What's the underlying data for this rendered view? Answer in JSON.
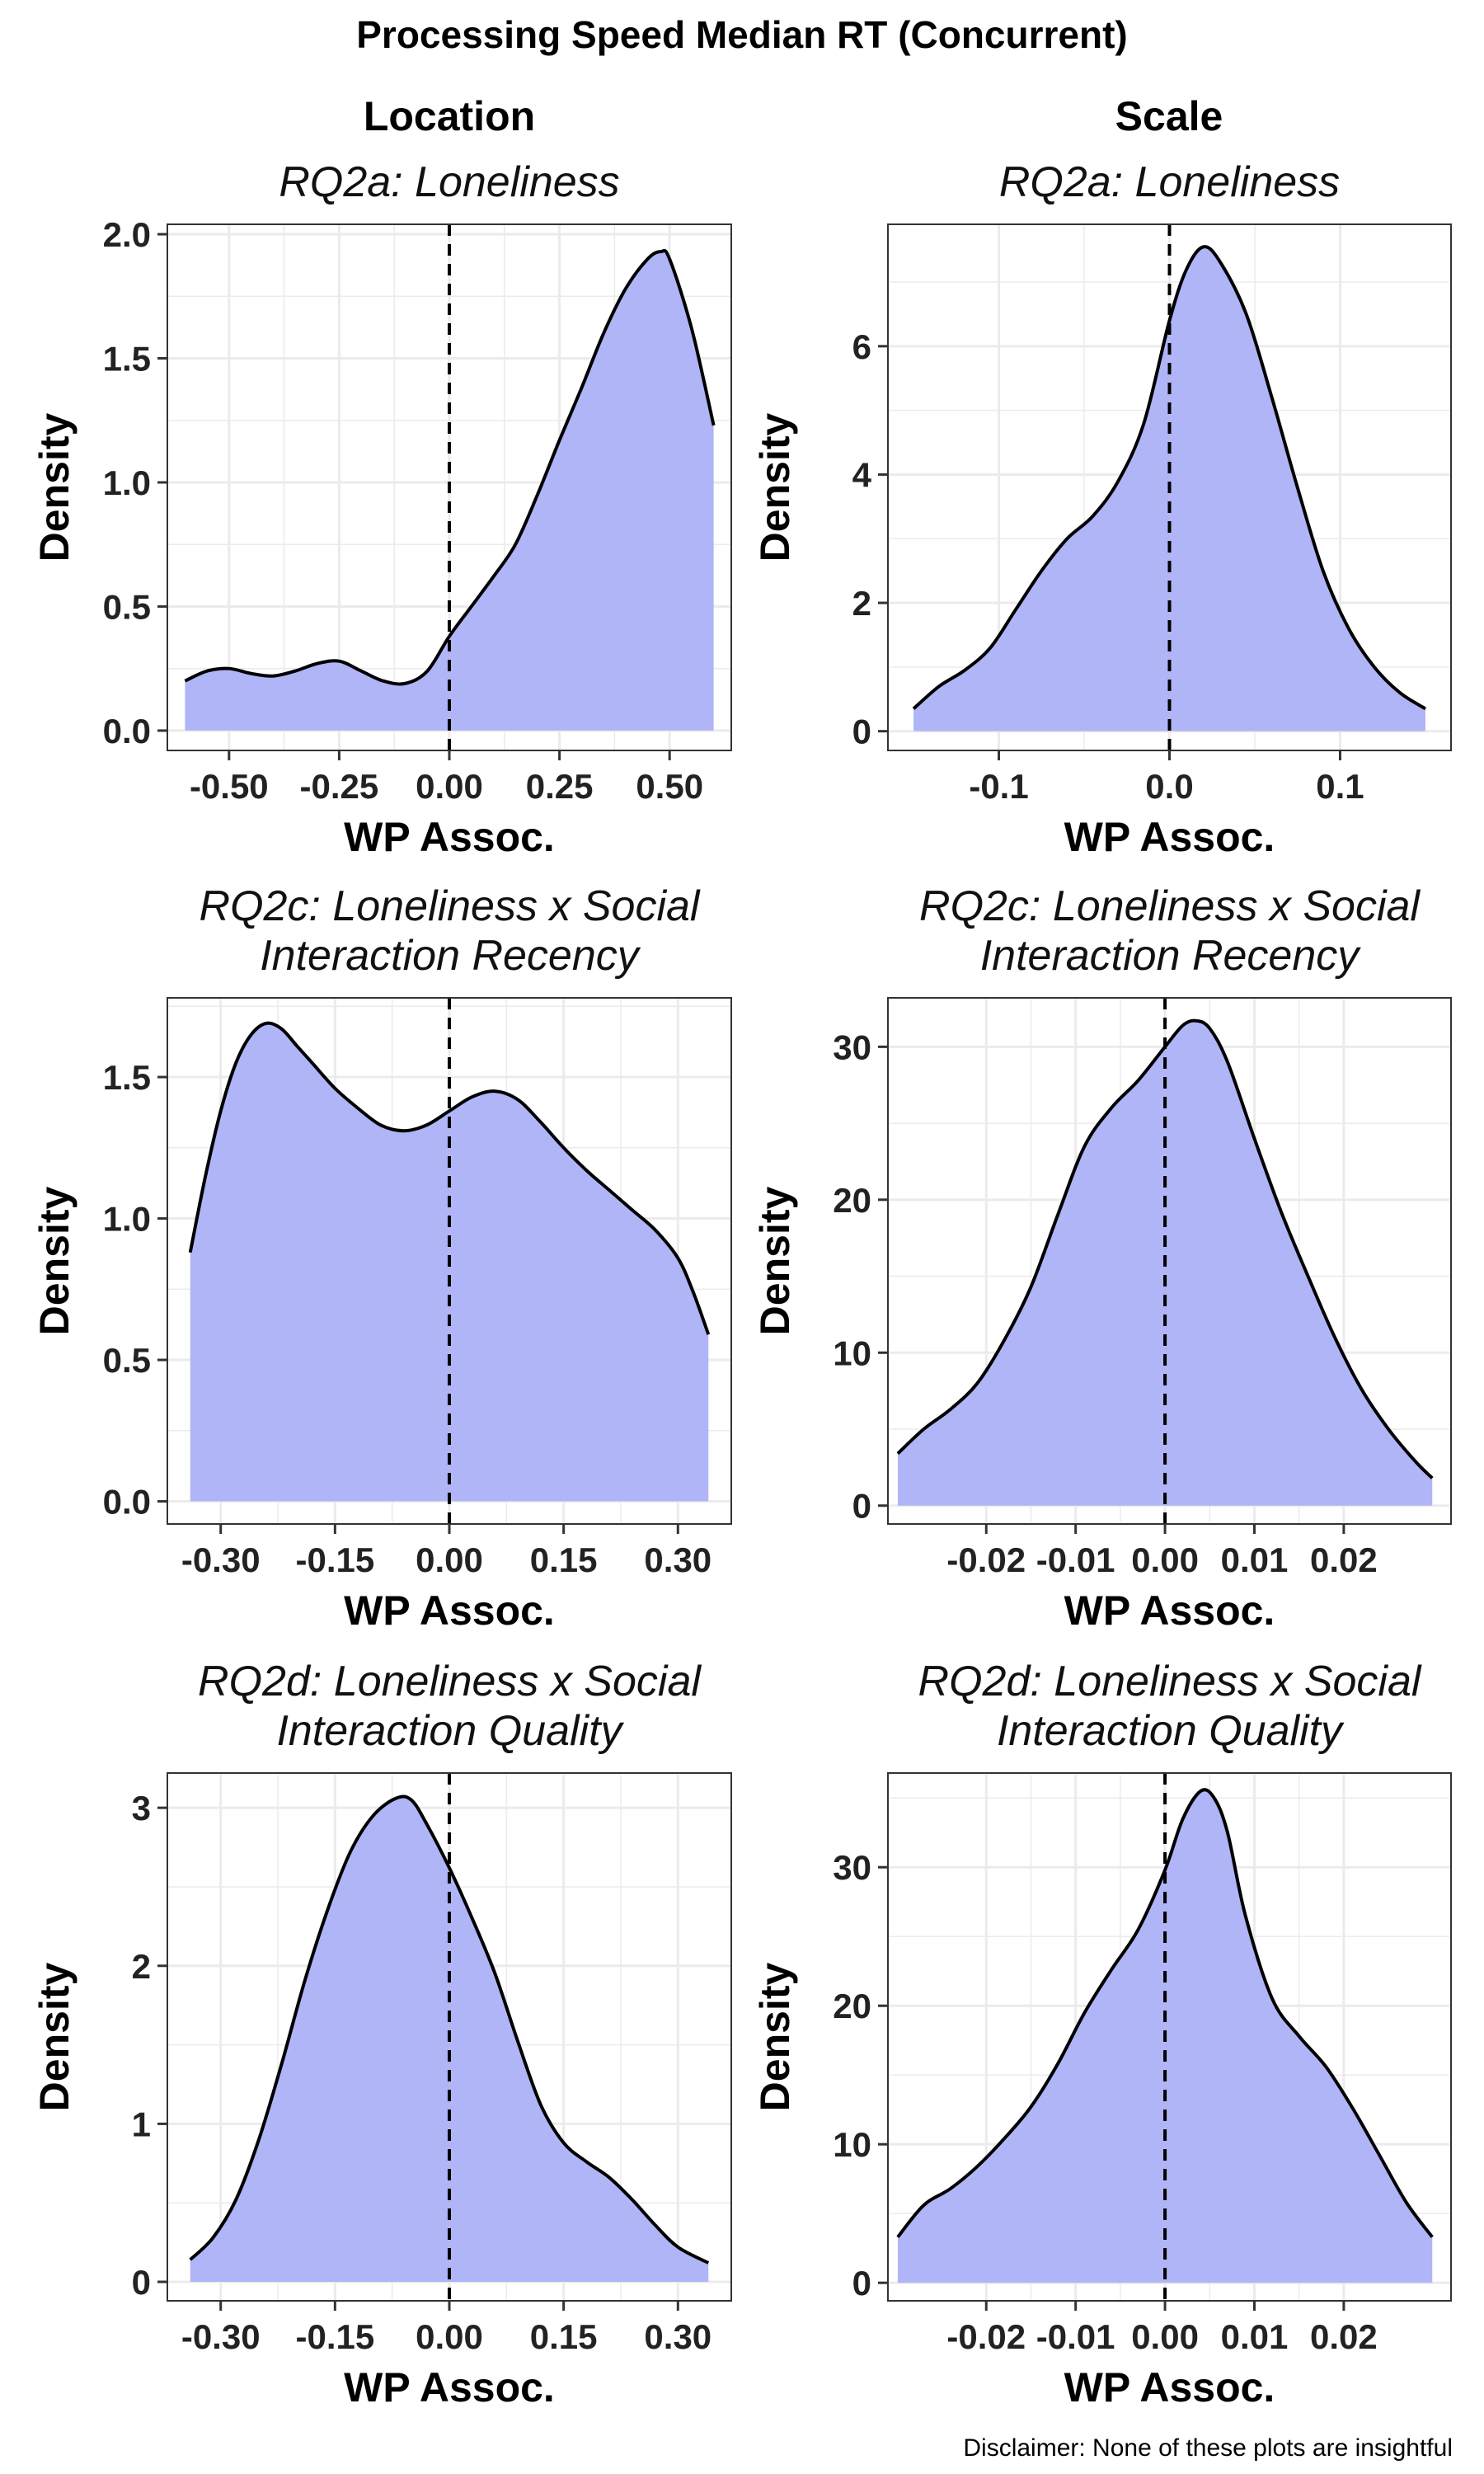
{
  "title": "Processing Speed Median RT (Concurrent)",
  "caption": "Disclaimer: None of these plots are insightful",
  "column_headers": [
    "Location",
    "Scale"
  ],
  "colors": {
    "fill": "#b0b5f7",
    "line": "#000000",
    "grid": "#ebebeb",
    "panel_border": "#333333"
  },
  "chart_data": [
    {
      "type": "area",
      "column": "Location",
      "title": "RQ2a: Loneliness",
      "xlabel": "WP Assoc.",
      "ylabel": "Density",
      "xlim": [
        -0.64,
        0.64
      ],
      "ylim": [
        -0.08,
        2.04
      ],
      "xticks": [
        -0.5,
        -0.25,
        0,
        0.25,
        0.5
      ],
      "xtick_labels": [
        "-0.50",
        "-0.25",
        "0.00",
        "0.25",
        "0.50"
      ],
      "yticks": [
        0,
        0.5,
        1,
        1.5,
        2
      ],
      "ytick_labels": [
        "0.0",
        "0.5",
        "1.0",
        "1.5",
        "2.0"
      ],
      "vline": 0,
      "grid": true,
      "x": [
        -0.6,
        -0.55,
        -0.5,
        -0.45,
        -0.4,
        -0.35,
        -0.3,
        -0.25,
        -0.2,
        -0.15,
        -0.1,
        -0.05,
        0,
        0.05,
        0.1,
        0.15,
        0.2,
        0.25,
        0.3,
        0.35,
        0.4,
        0.45,
        0.48,
        0.5,
        0.55,
        0.6
      ],
      "y": [
        0.2,
        0.24,
        0.25,
        0.23,
        0.22,
        0.24,
        0.27,
        0.28,
        0.24,
        0.2,
        0.19,
        0.24,
        0.38,
        0.5,
        0.62,
        0.75,
        0.95,
        1.17,
        1.38,
        1.6,
        1.78,
        1.9,
        1.93,
        1.9,
        1.62,
        1.23
      ]
    },
    {
      "type": "area",
      "column": "Scale",
      "title": "RQ2a: Loneliness",
      "xlabel": "WP Assoc.",
      "ylabel": "Density",
      "xlim": [
        -0.165,
        0.165
      ],
      "ylim": [
        -0.3,
        7.9
      ],
      "xticks": [
        -0.1,
        0,
        0.1
      ],
      "xtick_labels": [
        "-0.1",
        "0.0",
        "0.1"
      ],
      "yticks": [
        0,
        2,
        4,
        6
      ],
      "ytick_labels": [
        "0",
        "2",
        "4",
        "6"
      ],
      "vline": 0,
      "grid": true,
      "x": [
        -0.15,
        -0.135,
        -0.12,
        -0.105,
        -0.09,
        -0.075,
        -0.06,
        -0.045,
        -0.03,
        -0.015,
        0,
        0.01,
        0.02,
        0.03,
        0.045,
        0.06,
        0.075,
        0.09,
        0.105,
        0.12,
        0.135,
        0.15
      ],
      "y": [
        0.35,
        0.7,
        0.95,
        1.3,
        1.9,
        2.5,
        3.0,
        3.35,
        3.9,
        4.8,
        6.4,
        7.2,
        7.55,
        7.3,
        6.5,
        5.2,
        3.8,
        2.5,
        1.6,
        1.0,
        0.6,
        0.35
      ]
    },
    {
      "type": "area",
      "column": "Location",
      "title": "RQ2c: Loneliness x Social Interaction Recency",
      "title_lines": [
        "RQ2c: Loneliness x Social",
        "Interaction Recency"
      ],
      "xlabel": "WP Assoc.",
      "ylabel": "Density",
      "xlim": [
        -0.37,
        0.37
      ],
      "ylim": [
        -0.08,
        1.78
      ],
      "xticks": [
        -0.3,
        -0.15,
        0,
        0.15,
        0.3
      ],
      "xtick_labels": [
        "-0.30",
        "-0.15",
        "0.00",
        "0.15",
        "0.30"
      ],
      "yticks": [
        0,
        0.5,
        1,
        1.5
      ],
      "ytick_labels": [
        "0.0",
        "0.5",
        "1.0",
        "1.5"
      ],
      "vline": 0,
      "grid": true,
      "x": [
        -0.34,
        -0.32,
        -0.3,
        -0.28,
        -0.26,
        -0.24,
        -0.22,
        -0.2,
        -0.18,
        -0.15,
        -0.12,
        -0.09,
        -0.06,
        -0.03,
        0,
        0.03,
        0.06,
        0.09,
        0.12,
        0.15,
        0.18,
        0.21,
        0.24,
        0.27,
        0.3,
        0.32,
        0.34
      ],
      "y": [
        0.88,
        1.15,
        1.38,
        1.55,
        1.65,
        1.69,
        1.67,
        1.61,
        1.55,
        1.46,
        1.39,
        1.33,
        1.31,
        1.33,
        1.38,
        1.43,
        1.45,
        1.42,
        1.34,
        1.25,
        1.17,
        1.1,
        1.03,
        0.96,
        0.86,
        0.74,
        0.59
      ]
    },
    {
      "type": "area",
      "column": "Scale",
      "title": "RQ2c: Loneliness x Social Interaction Recency",
      "title_lines": [
        "RQ2c: Loneliness x Social",
        "Interaction Recency"
      ],
      "xlabel": "WP Assoc.",
      "ylabel": "Density",
      "xlim": [
        -0.031,
        0.032
      ],
      "ylim": [
        -1.2,
        33.2
      ],
      "xticks": [
        -0.02,
        -0.01,
        0,
        0.01,
        0.02
      ],
      "xtick_labels": [
        "-0.02",
        "-0.01",
        "0.00",
        "0.01",
        "0.02"
      ],
      "yticks": [
        0,
        10,
        20,
        30
      ],
      "ytick_labels": [
        "0",
        "10",
        "20",
        "30"
      ],
      "vline": 0,
      "grid": true,
      "x": [
        -0.0299,
        -0.027,
        -0.024,
        -0.021,
        -0.018,
        -0.015,
        -0.012,
        -0.009,
        -0.006,
        -0.003,
        0,
        0.002,
        0.0035,
        0.005,
        0.007,
        0.01,
        0.013,
        0.016,
        0.019,
        0.022,
        0.025,
        0.028,
        0.0299
      ],
      "y": [
        3.4,
        5.0,
        6.3,
        8.0,
        10.8,
        14.3,
        19.0,
        23.5,
        26.0,
        27.8,
        30.0,
        31.4,
        31.7,
        31.2,
        29.0,
        24.0,
        19.2,
        15.0,
        11.0,
        7.6,
        5.0,
        2.9,
        1.8
      ]
    },
    {
      "type": "area",
      "column": "Location",
      "title": "RQ2d: Loneliness x Social Interaction Quality",
      "title_lines": [
        "RQ2d: Loneliness x Social",
        "Interaction Quality"
      ],
      "xlabel": "WP Assoc.",
      "ylabel": "Density",
      "xlim": [
        -0.37,
        0.37
      ],
      "ylim": [
        -0.12,
        3.22
      ],
      "xticks": [
        -0.3,
        -0.15,
        0,
        0.15,
        0.3
      ],
      "xtick_labels": [
        "-0.30",
        "-0.15",
        "0.00",
        "0.15",
        "0.30"
      ],
      "yticks": [
        0,
        1,
        2,
        3
      ],
      "ytick_labels": [
        "0",
        "1",
        "2",
        "3"
      ],
      "vline": 0,
      "grid": true,
      "x": [
        -0.34,
        -0.31,
        -0.28,
        -0.25,
        -0.22,
        -0.19,
        -0.16,
        -0.13,
        -0.1,
        -0.07,
        -0.05,
        -0.03,
        0,
        0.03,
        0.06,
        0.09,
        0.12,
        0.15,
        0.18,
        0.21,
        0.24,
        0.27,
        0.3,
        0.34
      ],
      "y": [
        0.14,
        0.28,
        0.52,
        0.9,
        1.38,
        1.9,
        2.35,
        2.72,
        2.95,
        3.06,
        3.05,
        2.9,
        2.62,
        2.3,
        1.95,
        1.52,
        1.12,
        0.88,
        0.76,
        0.66,
        0.52,
        0.36,
        0.22,
        0.12
      ]
    },
    {
      "type": "area",
      "column": "Scale",
      "title": "RQ2d: Loneliness x Social Interaction Quality",
      "title_lines": [
        "RQ2d: Loneliness x Social",
        "Interaction Quality"
      ],
      "xlabel": "WP Assoc.",
      "ylabel": "Density",
      "xlim": [
        -0.031,
        0.032
      ],
      "ylim": [
        -1.3,
        36.8
      ],
      "xticks": [
        -0.02,
        -0.01,
        0,
        0.01,
        0.02
      ],
      "xtick_labels": [
        "-0.02",
        "-0.01",
        "0.00",
        "0.01",
        "0.02"
      ],
      "yticks": [
        0,
        10,
        20,
        30
      ],
      "ytick_labels": [
        "0",
        "10",
        "20",
        "30"
      ],
      "vline": 0,
      "grid": true,
      "x": [
        -0.0299,
        -0.027,
        -0.024,
        -0.021,
        -0.018,
        -0.015,
        -0.012,
        -0.009,
        -0.006,
        -0.003,
        0,
        0.002,
        0.004,
        0.0055,
        0.007,
        0.009,
        0.012,
        0.015,
        0.018,
        0.021,
        0.024,
        0.027,
        0.0299
      ],
      "y": [
        3.3,
        5.6,
        6.8,
        8.4,
        10.4,
        12.7,
        15.8,
        19.5,
        22.6,
        25.5,
        29.8,
        33.5,
        35.5,
        35.0,
        32.5,
        26.5,
        20.5,
        17.8,
        15.6,
        12.6,
        9.2,
        5.8,
        3.3
      ]
    }
  ]
}
